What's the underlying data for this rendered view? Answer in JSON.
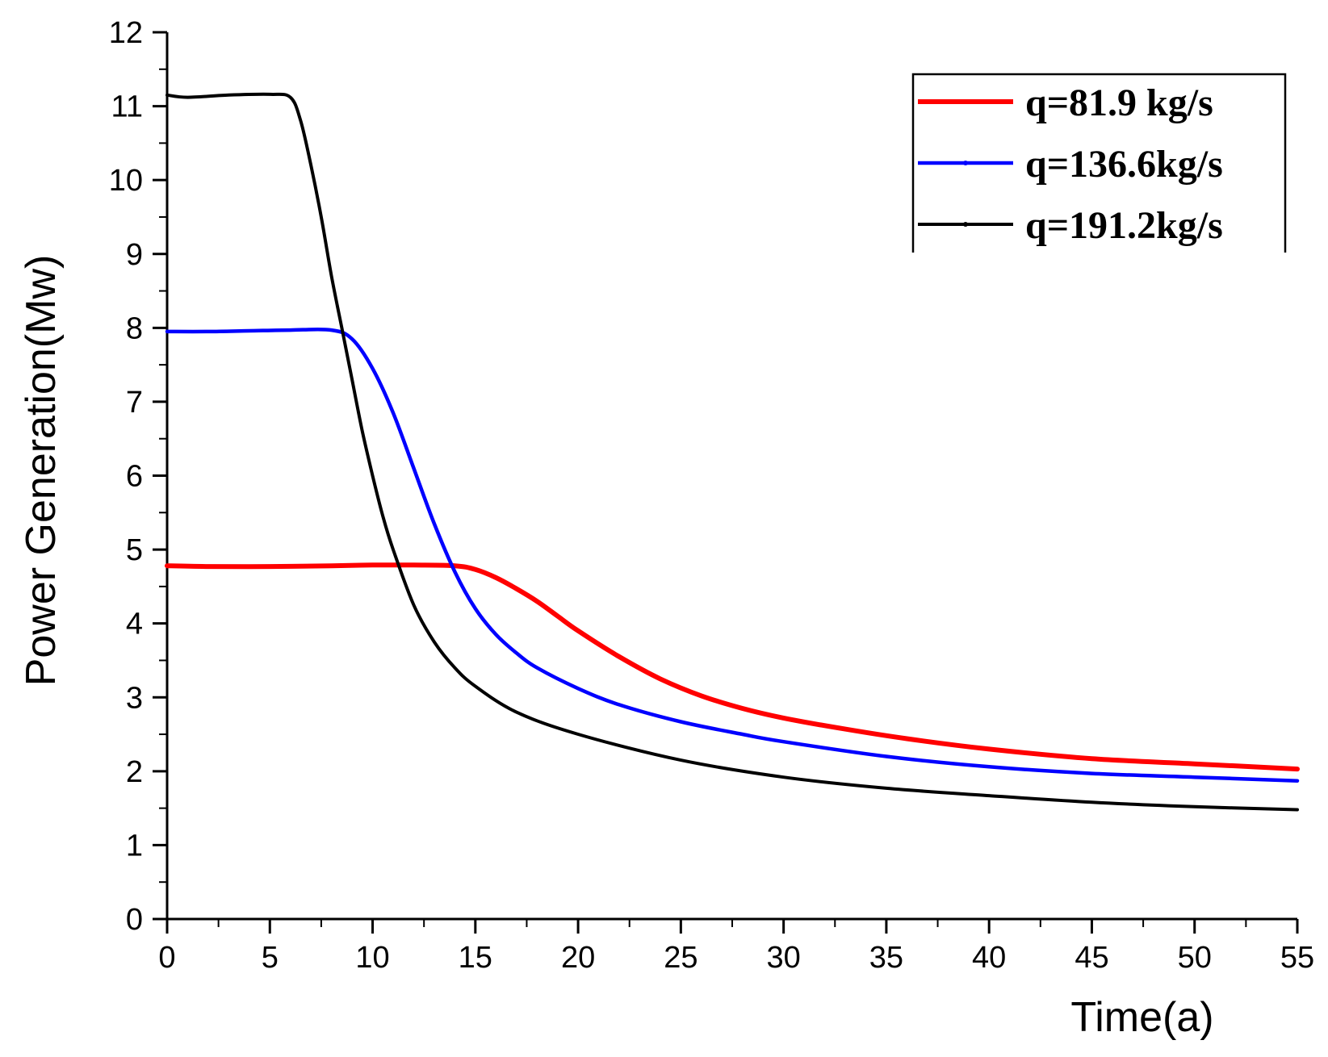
{
  "chart_data": {
    "type": "line",
    "title": "",
    "xlabel": "Time(a)",
    "ylabel": "Power Generation(Mw)",
    "xlim": [
      0,
      55
    ],
    "ylim": [
      0,
      12
    ],
    "xticks": [
      0,
      5,
      10,
      15,
      20,
      25,
      30,
      35,
      40,
      45,
      50,
      55
    ],
    "yticks": [
      0,
      1,
      2,
      3,
      4,
      5,
      6,
      7,
      8,
      9,
      10,
      11,
      12
    ],
    "grid": false,
    "legend_position": "top-right",
    "series": [
      {
        "name": "q=81.9  kg/s",
        "color": "#ff0000",
        "x": [
          0,
          2,
          5,
          8,
          10,
          12,
          14,
          15,
          16,
          17,
          18,
          19,
          20,
          22,
          24,
          26,
          28,
          30,
          33,
          36,
          40,
          45,
          50,
          55
        ],
        "y": [
          4.78,
          4.77,
          4.77,
          4.78,
          4.79,
          4.79,
          4.78,
          4.73,
          4.62,
          4.47,
          4.3,
          4.1,
          3.9,
          3.55,
          3.25,
          3.02,
          2.85,
          2.72,
          2.57,
          2.44,
          2.3,
          2.17,
          2.1,
          2.03
        ]
      },
      {
        "name": "q=136.6kg/s",
        "color": "#0000ff",
        "x": [
          0,
          2,
          4,
          6,
          8,
          9,
          10,
          11,
          12,
          13,
          14,
          15,
          16,
          17,
          18,
          20,
          22,
          25,
          28,
          30,
          35,
          40,
          45,
          50,
          55
        ],
        "y": [
          7.95,
          7.95,
          7.96,
          7.97,
          7.97,
          7.85,
          7.45,
          6.85,
          6.1,
          5.35,
          4.7,
          4.2,
          3.85,
          3.6,
          3.4,
          3.12,
          2.9,
          2.67,
          2.5,
          2.4,
          2.2,
          2.06,
          1.97,
          1.92,
          1.87
        ]
      },
      {
        "name": "q=191.2kg/s",
        "color": "#000000",
        "x": [
          0,
          1,
          3,
          5,
          6,
          6.5,
          7,
          7.5,
          8,
          8.5,
          9,
          9.5,
          10,
          10.5,
          11,
          12,
          13,
          14,
          15,
          17,
          20,
          25,
          30,
          35,
          40,
          45,
          50,
          55
        ],
        "y": [
          11.15,
          11.12,
          11.15,
          11.16,
          11.12,
          10.8,
          10.2,
          9.5,
          8.7,
          8.0,
          7.3,
          6.6,
          6.0,
          5.45,
          5.0,
          4.25,
          3.75,
          3.4,
          3.15,
          2.8,
          2.5,
          2.15,
          1.92,
          1.77,
          1.67,
          1.58,
          1.52,
          1.48
        ]
      }
    ]
  }
}
